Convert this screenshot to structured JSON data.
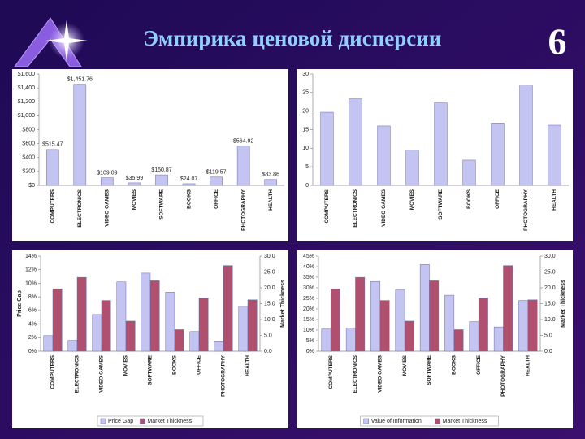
{
  "slide": {
    "title": "Эмпирика ценовой дисперсии",
    "number": "6"
  },
  "chart_data": [
    {
      "type": "bar",
      "categories": [
        "COMPUTERS",
        "ELECTRONICS",
        "VIDEO GAMES",
        "MOVIES",
        "SOFTWARE",
        "BOOKS",
        "OFFICE",
        "PHOTOGRAPHY",
        "HEALTH"
      ],
      "values": [
        515.47,
        1451.76,
        109.09,
        35.99,
        150.87,
        24.07,
        119.57,
        564.92,
        83.86
      ],
      "value_labels": [
        "$515.47",
        "$1,451.76",
        "$109.09",
        "$35.99",
        "$150.87",
        "$24.07",
        "$119.57",
        "$564.92",
        "$83.86"
      ],
      "color": "#c4c4f2",
      "ylim": [
        0,
        1600
      ],
      "yticks": [
        {
          "value": 0,
          "label": "$0"
        },
        {
          "value": 200,
          "label": "$200"
        },
        {
          "value": 400,
          "label": "$400"
        },
        {
          "value": 600,
          "label": "$600"
        },
        {
          "value": 800,
          "label": "$800"
        },
        {
          "value": 1000,
          "label": "$1,000"
        },
        {
          "value": 1200,
          "label": "$1,200"
        },
        {
          "value": 1400,
          "label": "$1,400"
        },
        {
          "value": 1600,
          "label": "$1,600"
        }
      ]
    },
    {
      "type": "bar",
      "categories": [
        "COMPUTERS",
        "ELECTRONICS",
        "VIDEO GAMES",
        "MOVIES",
        "SOFTWARE",
        "BOOKS",
        "OFFICE",
        "PHOTOGRAPHY",
        "HEALTH"
      ],
      "values": [
        19.7,
        23.3,
        16,
        9.5,
        22.2,
        6.8,
        16.8,
        27,
        16.2
      ],
      "color": "#c4c4f2",
      "ylim": [
        0,
        30
      ],
      "yticks": [
        0,
        5,
        10,
        15,
        20,
        25,
        30
      ]
    },
    {
      "type": "bar",
      "categories": [
        "COMPUTERS",
        "ELECTRONICS",
        "VIDEO GAMES",
        "MOVIES",
        "SOFTWARE",
        "BOOKS",
        "OFFICE",
        "PHOTOGRAPHY",
        "HEALTH"
      ],
      "y_label": "Price Gap",
      "y2_label": "Market Thickness",
      "series": [
        {
          "name": "Price Gap",
          "color": "#c4c4f2",
          "values": [
            2.3,
            1.6,
            5.4,
            10.2,
            11.5,
            8.7,
            2.9,
            1.4,
            6.6
          ]
        },
        {
          "name": "Market Thickness",
          "color": "#b0506e",
          "axis": "y2",
          "values": [
            19.7,
            23.3,
            16,
            9.5,
            22.2,
            6.8,
            16.8,
            27,
            16.2
          ]
        }
      ],
      "ylim": [
        0,
        14
      ],
      "yticks": [
        {
          "value": 0,
          "label": "0%"
        },
        {
          "value": 2,
          "label": "2%"
        },
        {
          "value": 4,
          "label": "4%"
        },
        {
          "value": 6,
          "label": "6%"
        },
        {
          "value": 8,
          "label": "8%"
        },
        {
          "value": 10,
          "label": "10%"
        },
        {
          "value": 12,
          "label": "12%"
        },
        {
          "value": 14,
          "label": "14%"
        }
      ],
      "y2lim": [
        0,
        30
      ],
      "y2ticks": [
        {
          "value": 0,
          "label": "0.0"
        },
        {
          "value": 5,
          "label": "5.0"
        },
        {
          "value": 10,
          "label": "10.0"
        },
        {
          "value": 15,
          "label": "15.0"
        },
        {
          "value": 20,
          "label": "20.0"
        },
        {
          "value": 25,
          "label": "25.0"
        },
        {
          "value": 30,
          "label": "30.0"
        }
      ],
      "legend": "bottom"
    },
    {
      "type": "bar",
      "categories": [
        "COMPUTERS",
        "ELECTRONICS",
        "VIDEO GAMES",
        "MOVIES",
        "SOFTWARE",
        "BOOKS",
        "OFFICE",
        "PHOTOGRAPHY",
        "HEALTH"
      ],
      "y2_label": "Market Thickness",
      "series": [
        {
          "name": "Value of Information",
          "color": "#c4c4f2",
          "values": [
            10.5,
            11,
            33,
            29,
            41,
            26.5,
            14,
            11.5,
            24
          ]
        },
        {
          "name": "Market Thickness",
          "color": "#b0506e",
          "axis": "y2",
          "values": [
            19.7,
            23.3,
            16,
            9.5,
            22.2,
            6.8,
            16.8,
            27,
            16.2
          ]
        }
      ],
      "ylim": [
        0,
        45
      ],
      "yticks": [
        {
          "value": 0,
          "label": "0%"
        },
        {
          "value": 5,
          "label": "5%"
        },
        {
          "value": 10,
          "label": "10%"
        },
        {
          "value": 15,
          "label": "15%"
        },
        {
          "value": 20,
          "label": "20%"
        },
        {
          "value": 25,
          "label": "25%"
        },
        {
          "value": 30,
          "label": "30%"
        },
        {
          "value": 35,
          "label": "35%"
        },
        {
          "value": 40,
          "label": "40%"
        },
        {
          "value": 45,
          "label": "45%"
        }
      ],
      "y2lim": [
        0,
        30
      ],
      "y2ticks": [
        {
          "value": 0,
          "label": "0.0"
        },
        {
          "value": 5,
          "label": "5.0"
        },
        {
          "value": 10,
          "label": "10.0"
        },
        {
          "value": 15,
          "label": "15.0"
        },
        {
          "value": 20,
          "label": "20.0"
        },
        {
          "value": 25,
          "label": "25.0"
        },
        {
          "value": 30,
          "label": "30.0"
        }
      ],
      "legend": "bottom"
    }
  ]
}
